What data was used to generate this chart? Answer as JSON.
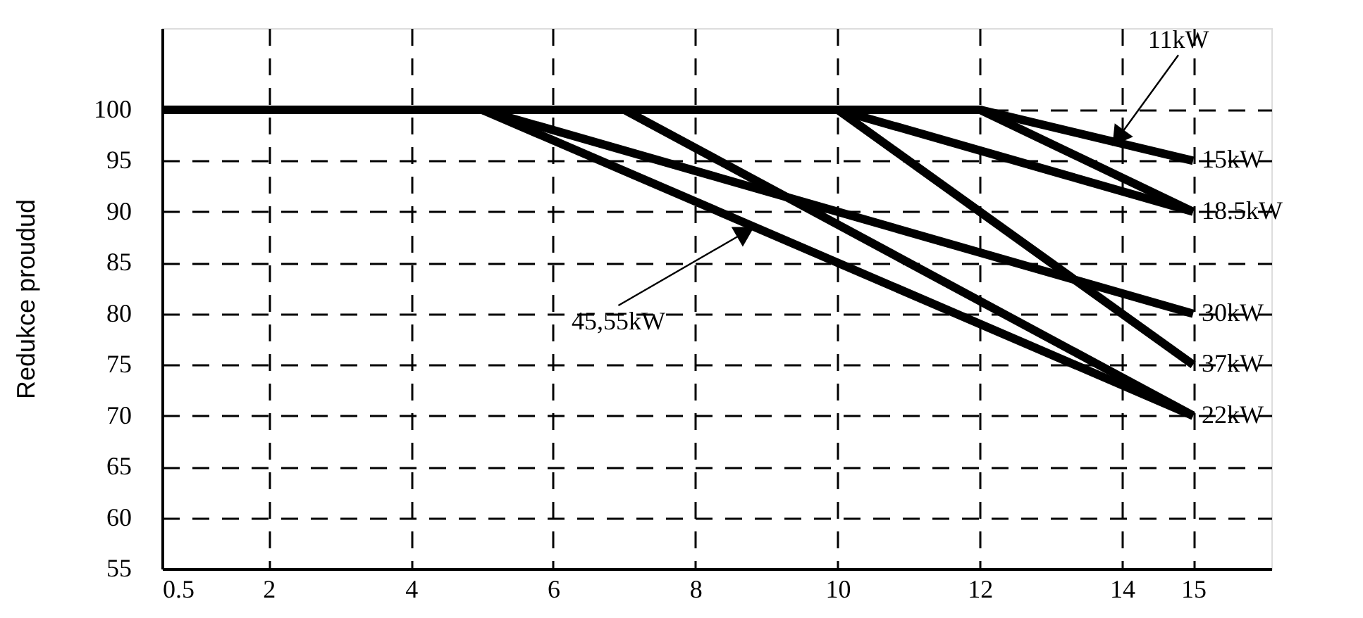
{
  "chart_data": {
    "type": "line",
    "ylabel": "Redukce proudud",
    "xlim": [
      0.5,
      16.1
    ],
    "xticks": [
      0.5,
      2,
      4,
      6,
      8,
      10,
      12,
      14,
      15
    ],
    "ylim": [
      55,
      108
    ],
    "yticks": [
      55,
      60,
      65,
      70,
      75,
      80,
      85,
      90,
      95,
      100
    ],
    "grid": true,
    "line_style": "solid",
    "series": [
      {
        "color": "#000000",
        "x": [
          0.5,
          12,
          15
        ],
        "values": [
          100,
          100,
          95
        ]
      },
      {
        "color": "#000000",
        "x": [
          0.5,
          12,
          15
        ],
        "values": [
          100,
          100,
          90
        ]
      },
      {
        "color": "#000000",
        "x": [
          0.5,
          10,
          15
        ],
        "values": [
          100,
          100,
          90
        ]
      },
      {
        "color": "#000000",
        "x": [
          0.5,
          10,
          15
        ],
        "values": [
          100,
          100,
          75
        ]
      },
      {
        "color": "#000000",
        "x": [
          0.5,
          7,
          15
        ],
        "values": [
          100,
          100,
          70
        ]
      },
      {
        "color": "#000000",
        "x": [
          0.5,
          5,
          15
        ],
        "values": [
          100,
          100,
          80
        ]
      },
      {
        "color": "#000000",
        "x": [
          0.5,
          5,
          15
        ],
        "values": [
          100,
          100,
          70
        ]
      }
    ],
    "annotations": [
      {
        "text": "11kW",
        "x": 13.9,
        "y": 96.8
      },
      {
        "text": "15kW",
        "x": 15,
        "y": 95
      },
      {
        "text": "18.5kW",
        "x": 15,
        "y": 90
      },
      {
        "text": "30kW",
        "x": 15,
        "y": 80
      },
      {
        "text": "37kW",
        "x": 15,
        "y": 75
      },
      {
        "text": "22kW",
        "x": 15,
        "y": 70
      },
      {
        "text": "45,55kW",
        "x": 8.8,
        "y": 88.4
      }
    ]
  }
}
